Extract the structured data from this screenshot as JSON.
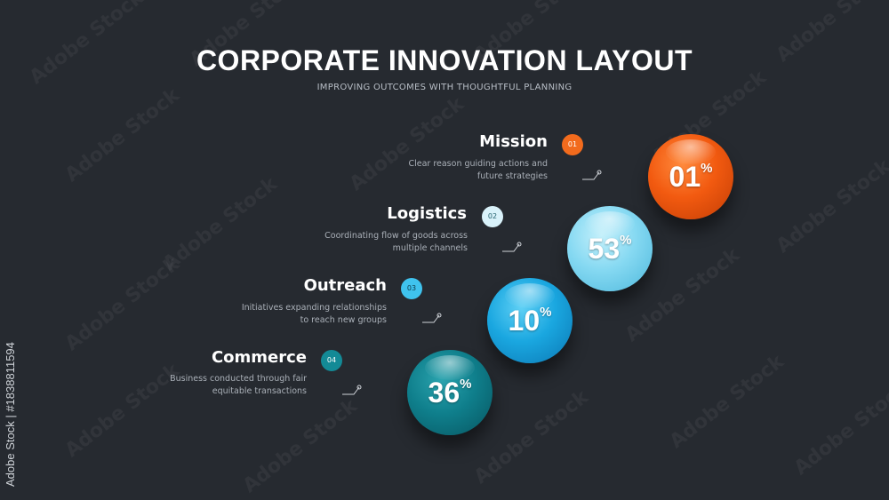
{
  "header": {
    "title": "CORPORATE INNOVATION LAYOUT",
    "subtitle": "IMPROVING OUTCOMES WITH THOUGHTFUL PLANNING"
  },
  "watermark": {
    "text": "Adobe Stock",
    "side_text": "Adobe Stock | #1838811594"
  },
  "steps": [
    {
      "title": "Mission",
      "number": "01",
      "desc_line1": "Clear reason guiding actions and",
      "desc_line2": "future strategies",
      "value": "01",
      "unit": "%",
      "color": "#f26b1d"
    },
    {
      "title": "Logistics",
      "number": "02",
      "desc_line1": "Coordinating flow of goods across",
      "desc_line2": "multiple channels",
      "value": "53",
      "unit": "%",
      "color": "#7fd6ef"
    },
    {
      "title": "Outreach",
      "number": "03",
      "desc_line1": "Initiatives expanding relationships",
      "desc_line2": "to reach new groups",
      "value": "10",
      "unit": "%",
      "color": "#1aa7e0"
    },
    {
      "title": "Commerce",
      "number": "04",
      "desc_line1": "Business conducted through fair",
      "desc_line2": "equitable transactions",
      "value": "36",
      "unit": "%",
      "color": "#0f7f8c"
    }
  ]
}
